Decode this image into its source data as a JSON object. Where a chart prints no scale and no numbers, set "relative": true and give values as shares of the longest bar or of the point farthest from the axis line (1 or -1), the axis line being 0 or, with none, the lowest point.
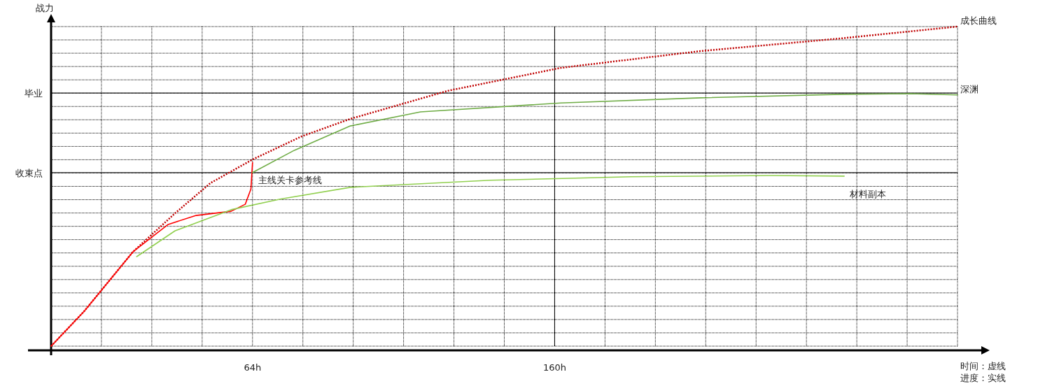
{
  "chart_data": {
    "type": "line",
    "relative": true,
    "ylabel": "战力",
    "xlim": [
      0,
      288
    ],
    "xticks": [
      {
        "value": 0,
        "label": null
      },
      {
        "value": 16,
        "label": null
      },
      {
        "value": 32,
        "label": null
      },
      {
        "value": 48,
        "label": null
      },
      {
        "value": 64,
        "label": "64h"
      },
      {
        "value": 80,
        "label": null
      },
      {
        "value": 96,
        "label": null
      },
      {
        "value": 112,
        "label": null
      },
      {
        "value": 128,
        "label": null
      },
      {
        "value": 144,
        "label": null
      },
      {
        "value": 160,
        "label": "160h"
      },
      {
        "value": 176,
        "label": null
      },
      {
        "value": 192,
        "label": null
      },
      {
        "value": 208,
        "label": null
      },
      {
        "value": 224,
        "label": null
      },
      {
        "value": 240,
        "label": null
      },
      {
        "value": 256,
        "label": null
      },
      {
        "value": 272,
        "label": null
      },
      {
        "value": 288,
        "label": null
      }
    ],
    "grid": true,
    "ref_lines": [
      {
        "axis": "y",
        "value": 0.792,
        "label": "毕业",
        "color": "#000000"
      },
      {
        "axis": "y",
        "value": 0.543,
        "label": "收束点",
        "color": "#000000"
      },
      {
        "axis": "x",
        "value": 160,
        "color": "#000000"
      }
    ],
    "series": [
      {
        "name": "成长曲线",
        "color": "#c00000",
        "line_style": "dotted",
        "x": [
          0,
          10.5,
          26,
          39.4,
          50.6,
          64,
          79.5,
          95,
          126,
          162,
          206,
          251,
          288
        ],
        "values": [
          0,
          0.109,
          0.295,
          0.416,
          0.51,
          0.584,
          0.656,
          0.711,
          0.799,
          0.871,
          0.923,
          0.963,
          1
        ]
      },
      {
        "name": "主线关卡参考线",
        "color": "#ff0000",
        "line_style": "solid",
        "x": [
          0,
          10.5,
          26,
          37.2,
          46.1,
          57.2,
          61.7,
          63.5,
          64
        ],
        "values": [
          0,
          0.109,
          0.295,
          0.381,
          0.409,
          0.422,
          0.444,
          0.492,
          0.575
        ]
      },
      {
        "name": "深渊",
        "color": "#70ad47",
        "line_style": "solid",
        "x": [
          64,
          77.3,
          95.1,
          117.4,
          162,
          206.5,
          251,
          273,
          288
        ],
        "values": [
          0.543,
          0.613,
          0.689,
          0.733,
          0.761,
          0.777,
          0.788,
          0.79,
          0.786
        ]
      },
      {
        "name": "材料副本",
        "color": "#92d050",
        "line_style": "solid",
        "x": [
          27.2,
          39.4,
          57.2,
          72.8,
          95.1,
          139.6,
          184.2,
          228.7,
          252
        ],
        "values": [
          0.28,
          0.361,
          0.427,
          0.46,
          0.497,
          0.519,
          0.53,
          0.534,
          0.532
        ]
      }
    ],
    "annotations": [
      "时间：虚线",
      "进度：实线"
    ]
  }
}
